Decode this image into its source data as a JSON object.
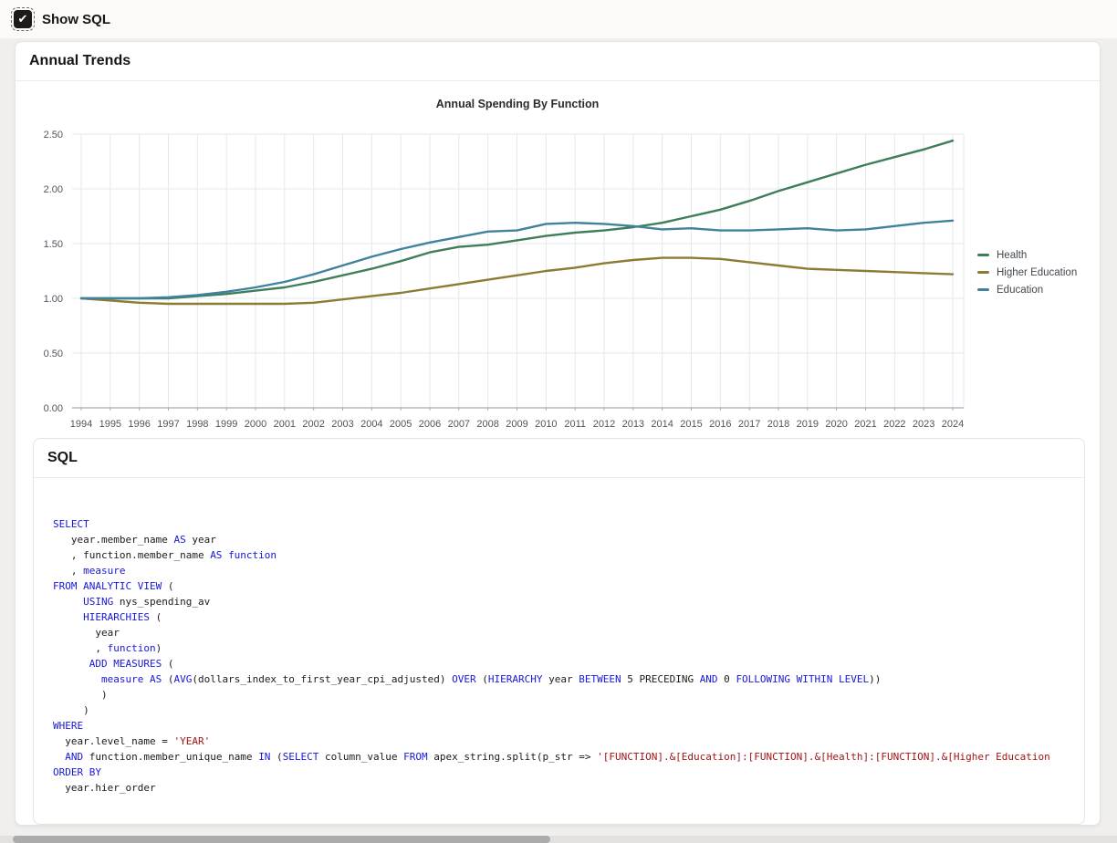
{
  "topbar": {
    "show_sql_label": "Show SQL",
    "show_sql_checked": true,
    "check_glyph": "✔"
  },
  "annual_trends": {
    "title": "Annual Trends"
  },
  "chart_data": {
    "type": "line",
    "title": "Annual Spending By Function",
    "x": [
      1994,
      1995,
      1996,
      1997,
      1998,
      1999,
      2000,
      2001,
      2002,
      2003,
      2004,
      2005,
      2006,
      2007,
      2008,
      2009,
      2010,
      2011,
      2012,
      2013,
      2014,
      2015,
      2016,
      2017,
      2018,
      2019,
      2020,
      2021,
      2022,
      2023,
      2024
    ],
    "series": [
      {
        "name": "Health",
        "color": "#3E7E59",
        "values": [
          1.0,
          1.0,
          1.0,
          1.0,
          1.02,
          1.04,
          1.07,
          1.1,
          1.15,
          1.21,
          1.27,
          1.34,
          1.42,
          1.47,
          1.49,
          1.53,
          1.57,
          1.6,
          1.62,
          1.65,
          1.69,
          1.75,
          1.81,
          1.89,
          1.98,
          2.06,
          2.14,
          2.22,
          2.29,
          2.36,
          2.44
        ]
      },
      {
        "name": "Higher Education",
        "color": "#8C7C32",
        "values": [
          1.0,
          0.98,
          0.96,
          0.95,
          0.95,
          0.95,
          0.95,
          0.95,
          0.96,
          0.99,
          1.02,
          1.05,
          1.09,
          1.13,
          1.17,
          1.21,
          1.25,
          1.28,
          1.32,
          1.35,
          1.37,
          1.37,
          1.36,
          1.33,
          1.3,
          1.27,
          1.26,
          1.25,
          1.24,
          1.23,
          1.22
        ]
      },
      {
        "name": "Education",
        "color": "#40819E",
        "values": [
          1.0,
          1.0,
          1.0,
          1.01,
          1.03,
          1.06,
          1.1,
          1.15,
          1.22,
          1.3,
          1.38,
          1.45,
          1.51,
          1.56,
          1.61,
          1.62,
          1.68,
          1.69,
          1.68,
          1.66,
          1.63,
          1.64,
          1.62,
          1.62,
          1.63,
          1.64,
          1.62,
          1.63,
          1.66,
          1.69,
          1.71
        ]
      }
    ],
    "ylim": [
      0,
      2.5
    ],
    "yticks": [
      0,
      0.5,
      1.0,
      1.5,
      2.0,
      2.5
    ],
    "ytick_labels": [
      "0.00",
      "0.50",
      "1.00",
      "1.50",
      "2.00",
      "2.50"
    ],
    "grid": true,
    "legend_position": "right"
  },
  "sql_panel": {
    "title": "SQL",
    "code_lines": [
      [
        [
          "k",
          "SELECT"
        ]
      ],
      [
        [
          "t",
          "   year.member_name "
        ],
        [
          "k",
          "AS"
        ],
        [
          "t",
          " year"
        ]
      ],
      [
        [
          "t",
          "   , function.member_name "
        ],
        [
          "k",
          "AS"
        ],
        [
          "t",
          " "
        ],
        [
          "k",
          "function"
        ]
      ],
      [
        [
          "t",
          "   , "
        ],
        [
          "k",
          "measure"
        ]
      ],
      [
        [
          "k",
          "FROM ANALYTIC VIEW"
        ],
        [
          "t",
          " ("
        ]
      ],
      [
        [
          "t",
          "     "
        ],
        [
          "k",
          "USING"
        ],
        [
          "t",
          " nys_spending_av"
        ]
      ],
      [
        [
          "t",
          "     "
        ],
        [
          "k",
          "HIERARCHIES"
        ],
        [
          "t",
          " ("
        ]
      ],
      [
        [
          "t",
          "       year"
        ]
      ],
      [
        [
          "t",
          "       , "
        ],
        [
          "k",
          "function"
        ],
        [
          "t",
          ")"
        ]
      ],
      [
        [
          "t",
          "      "
        ],
        [
          "k",
          "ADD MEASURES"
        ],
        [
          "t",
          " ("
        ]
      ],
      [
        [
          "t",
          "        "
        ],
        [
          "k",
          "measure"
        ],
        [
          "t",
          " "
        ],
        [
          "k",
          "AS"
        ],
        [
          "t",
          " ("
        ],
        [
          "k",
          "AVG"
        ],
        [
          "t",
          "(dollars_index_to_first_year_cpi_adjusted) "
        ],
        [
          "k",
          "OVER"
        ],
        [
          "t",
          " ("
        ],
        [
          "k",
          "HIERARCHY"
        ],
        [
          "t",
          " year "
        ],
        [
          "k",
          "BETWEEN"
        ],
        [
          "t",
          " 5 PRECEDING "
        ],
        [
          "k",
          "AND"
        ],
        [
          "t",
          " 0 "
        ],
        [
          "k",
          "FOLLOWING WITHIN LEVEL"
        ],
        [
          "t",
          "))"
        ]
      ],
      [
        [
          "t",
          "        )"
        ]
      ],
      [
        [
          "t",
          "     )"
        ]
      ],
      [
        [
          "k",
          "WHERE"
        ]
      ],
      [
        [
          "t",
          "  year.level_name = "
        ],
        [
          "s",
          "'YEAR'"
        ]
      ],
      [
        [
          "t",
          "  "
        ],
        [
          "k",
          "AND"
        ],
        [
          "t",
          " function.member_unique_name "
        ],
        [
          "k",
          "IN"
        ],
        [
          "t",
          " ("
        ],
        [
          "k",
          "SELECT"
        ],
        [
          "t",
          " column_value "
        ],
        [
          "k",
          "FROM"
        ],
        [
          "t",
          " apex_string.split(p_str => "
        ],
        [
          "s",
          "'[FUNCTION].&[Education]:[FUNCTION].&[Health]:[FUNCTION].&[Higher Education"
        ]
      ],
      [
        [
          "k",
          "ORDER BY"
        ]
      ],
      [
        [
          "t",
          "  year.hier_order"
        ]
      ]
    ]
  }
}
